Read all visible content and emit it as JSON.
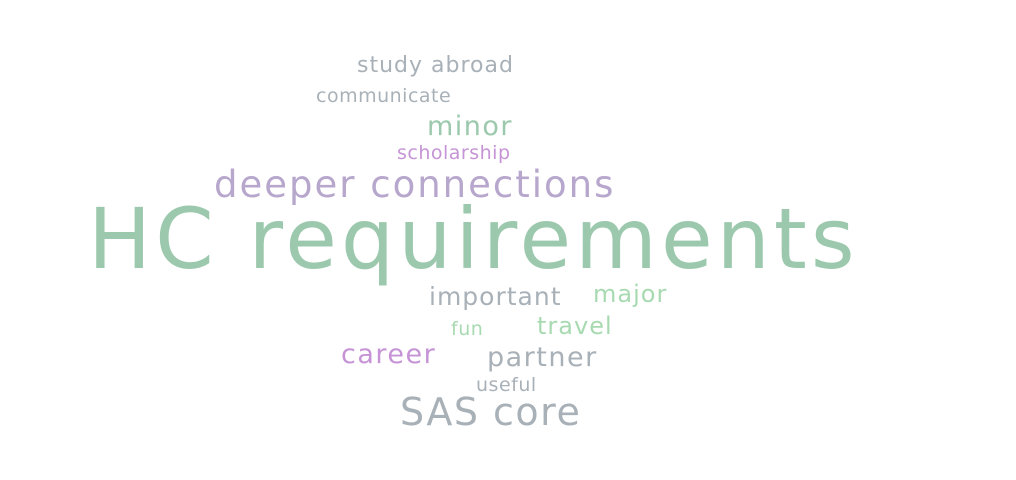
{
  "word_cloud": {
    "colors": {
      "green": "#9cc9ad",
      "light_green": "#a8dab1",
      "lavender": "#b8a7cd",
      "purple": "#c694d6",
      "gray": "#a9b1b8"
    },
    "words": [
      {
        "id": "study-abroad",
        "text": "study abroad",
        "color": "#a9b1b8"
      },
      {
        "id": "communicate",
        "text": "communicate",
        "color": "#a9b1b8"
      },
      {
        "id": "minor",
        "text": "minor",
        "color": "#9cc9ad"
      },
      {
        "id": "scholarship",
        "text": "scholarship",
        "color": "#c694d6"
      },
      {
        "id": "deeper-connections",
        "text": "deeper connections",
        "color": "#b8a7cd"
      },
      {
        "id": "hc-requirements",
        "text": "HC requirements",
        "color": "#9cc9ad"
      },
      {
        "id": "important",
        "text": "important",
        "color": "#a9b1b8"
      },
      {
        "id": "major",
        "text": "major",
        "color": "#a8dab1"
      },
      {
        "id": "fun",
        "text": "fun",
        "color": "#a8dab1"
      },
      {
        "id": "travel",
        "text": "travel",
        "color": "#a8dab1"
      },
      {
        "id": "career",
        "text": "career",
        "color": "#c694d6"
      },
      {
        "id": "partner",
        "text": "partner",
        "color": "#a9b1b8"
      },
      {
        "id": "useful",
        "text": "useful",
        "color": "#a9b1b8"
      },
      {
        "id": "sas-core",
        "text": "SAS core",
        "color": "#a9b1b8"
      }
    ]
  }
}
